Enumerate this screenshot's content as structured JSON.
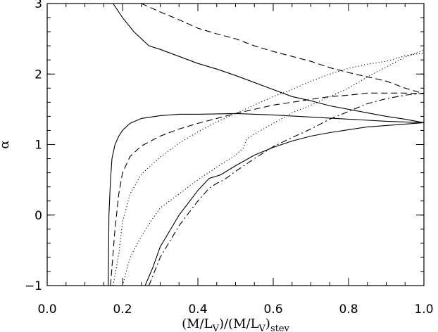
{
  "chart_data": {
    "type": "line",
    "title": "",
    "xlabel": "(M/LV)/(M/LV)stev",
    "xlabel_parts": {
      "open": "(M/L",
      "sub1": "V",
      "mid": ")/(M/L",
      "sub2": "V",
      "close": ")",
      "sub3": "stev"
    },
    "ylabel": "α",
    "xlim": [
      0.0,
      1.0
    ],
    "ylim": [
      -1,
      3
    ],
    "x_ticks": [
      "0.0",
      "0.2",
      "0.4",
      "0.6",
      "0.8",
      "1.0"
    ],
    "y_ticks": [
      "-1",
      "0",
      "1",
      "2",
      "3"
    ],
    "y_ticks_display": [
      "−1",
      "0",
      "1",
      "2",
      "3"
    ],
    "grid": false,
    "series": [
      {
        "style": "solid",
        "points": [
          [
            0.175,
            3.0
          ],
          [
            0.2,
            2.8
          ],
          [
            0.23,
            2.6
          ],
          [
            0.27,
            2.4
          ],
          [
            0.3,
            2.35
          ],
          [
            0.35,
            2.25
          ],
          [
            0.4,
            2.15
          ],
          [
            0.45,
            2.07
          ],
          [
            0.5,
            1.98
          ],
          [
            0.55,
            1.88
          ],
          [
            0.6,
            1.78
          ],
          [
            0.65,
            1.68
          ],
          [
            0.7,
            1.62
          ],
          [
            0.75,
            1.55
          ],
          [
            0.8,
            1.5
          ],
          [
            0.85,
            1.45
          ],
          [
            0.9,
            1.4
          ],
          [
            0.95,
            1.36
          ],
          [
            1.0,
            1.31
          ]
        ]
      },
      {
        "style": "dashed",
        "points": [
          [
            0.25,
            3.0
          ],
          [
            0.3,
            2.88
          ],
          [
            0.35,
            2.77
          ],
          [
            0.4,
            2.65
          ],
          [
            0.45,
            2.57
          ],
          [
            0.5,
            2.5
          ],
          [
            0.55,
            2.4
          ],
          [
            0.6,
            2.32
          ],
          [
            0.65,
            2.25
          ],
          [
            0.7,
            2.18
          ],
          [
            0.75,
            2.09
          ],
          [
            0.8,
            2.02
          ],
          [
            0.85,
            1.96
          ],
          [
            0.9,
            1.9
          ],
          [
            0.95,
            1.8
          ],
          [
            1.0,
            1.72
          ]
        ]
      },
      {
        "style": "solid",
        "points": [
          [
            0.162,
            -1.0
          ],
          [
            0.164,
            0.0
          ],
          [
            0.168,
            0.5
          ],
          [
            0.172,
            0.8
          ],
          [
            0.18,
            1.0
          ],
          [
            0.19,
            1.12
          ],
          [
            0.2,
            1.2
          ],
          [
            0.22,
            1.3
          ],
          [
            0.25,
            1.37
          ],
          [
            0.3,
            1.41
          ],
          [
            0.35,
            1.43
          ],
          [
            0.4,
            1.43
          ],
          [
            0.5,
            1.44
          ],
          [
            0.6,
            1.42
          ],
          [
            0.7,
            1.39
          ],
          [
            0.8,
            1.36
          ],
          [
            0.9,
            1.33
          ],
          [
            1.0,
            1.31
          ]
        ]
      },
      {
        "style": "dashed",
        "points": [
          [
            0.168,
            -1.0
          ],
          [
            0.18,
            -0.2
          ],
          [
            0.19,
            0.3
          ],
          [
            0.2,
            0.6
          ],
          [
            0.22,
            0.83
          ],
          [
            0.25,
            0.98
          ],
          [
            0.3,
            1.12
          ],
          [
            0.35,
            1.22
          ],
          [
            0.4,
            1.3
          ],
          [
            0.45,
            1.37
          ],
          [
            0.5,
            1.44
          ],
          [
            0.55,
            1.5
          ],
          [
            0.6,
            1.56
          ],
          [
            0.65,
            1.6
          ],
          [
            0.7,
            1.64
          ],
          [
            0.75,
            1.68
          ],
          [
            0.8,
            1.7
          ],
          [
            0.85,
            1.73
          ],
          [
            0.9,
            1.73
          ],
          [
            0.95,
            1.73
          ],
          [
            1.0,
            1.72
          ]
        ]
      },
      {
        "style": "dotted",
        "points": [
          [
            0.175,
            -1.0
          ],
          [
            0.19,
            -0.55
          ],
          [
            0.2,
            -0.1
          ],
          [
            0.22,
            0.3
          ],
          [
            0.25,
            0.58
          ],
          [
            0.3,
            0.82
          ],
          [
            0.35,
            1.02
          ],
          [
            0.4,
            1.18
          ],
          [
            0.45,
            1.32
          ],
          [
            0.5,
            1.44
          ],
          [
            0.55,
            1.56
          ],
          [
            0.6,
            1.68
          ],
          [
            0.65,
            1.78
          ],
          [
            0.7,
            1.9
          ],
          [
            0.75,
            2.0
          ],
          [
            0.8,
            2.08
          ],
          [
            0.85,
            2.14
          ],
          [
            0.9,
            2.18
          ],
          [
            0.95,
            2.26
          ],
          [
            1.0,
            2.3
          ]
        ]
      },
      {
        "style": "dotted",
        "points": [
          [
            0.2,
            -1.0
          ],
          [
            0.22,
            -0.6
          ],
          [
            0.25,
            -0.3
          ],
          [
            0.28,
            -0.05
          ],
          [
            0.3,
            0.1
          ],
          [
            0.35,
            0.3
          ],
          [
            0.4,
            0.5
          ],
          [
            0.45,
            0.68
          ],
          [
            0.5,
            0.85
          ],
          [
            0.52,
            0.95
          ],
          [
            0.53,
            1.08
          ],
          [
            0.55,
            1.15
          ],
          [
            0.6,
            1.3
          ],
          [
            0.65,
            1.45
          ],
          [
            0.7,
            1.56
          ],
          [
            0.75,
            1.68
          ],
          [
            0.8,
            1.8
          ],
          [
            0.85,
            1.96
          ],
          [
            0.9,
            2.1
          ],
          [
            0.95,
            2.24
          ],
          [
            1.0,
            2.34
          ]
        ]
      },
      {
        "style": "solid",
        "points": [
          [
            0.26,
            -1.0
          ],
          [
            0.28,
            -0.75
          ],
          [
            0.3,
            -0.45
          ],
          [
            0.35,
            0.0
          ],
          [
            0.4,
            0.35
          ],
          [
            0.43,
            0.52
          ],
          [
            0.46,
            0.57
          ],
          [
            0.5,
            0.7
          ],
          [
            0.55,
            0.85
          ],
          [
            0.6,
            0.96
          ],
          [
            0.65,
            1.05
          ],
          [
            0.7,
            1.12
          ],
          [
            0.75,
            1.17
          ],
          [
            0.8,
            1.21
          ],
          [
            0.85,
            1.25
          ],
          [
            0.9,
            1.27
          ],
          [
            0.95,
            1.29
          ],
          [
            1.0,
            1.31
          ]
        ]
      },
      {
        "style": "dashdot",
        "points": [
          [
            0.27,
            -1.0
          ],
          [
            0.3,
            -0.6
          ],
          [
            0.35,
            -0.15
          ],
          [
            0.4,
            0.2
          ],
          [
            0.43,
            0.38
          ],
          [
            0.45,
            0.45
          ],
          [
            0.47,
            0.5
          ],
          [
            0.5,
            0.62
          ],
          [
            0.55,
            0.8
          ],
          [
            0.6,
            0.97
          ],
          [
            0.65,
            1.1
          ],
          [
            0.7,
            1.22
          ],
          [
            0.75,
            1.36
          ],
          [
            0.8,
            1.47
          ],
          [
            0.85,
            1.58
          ],
          [
            0.9,
            1.65
          ],
          [
            0.95,
            1.7
          ],
          [
            1.0,
            1.73
          ]
        ]
      }
    ]
  }
}
